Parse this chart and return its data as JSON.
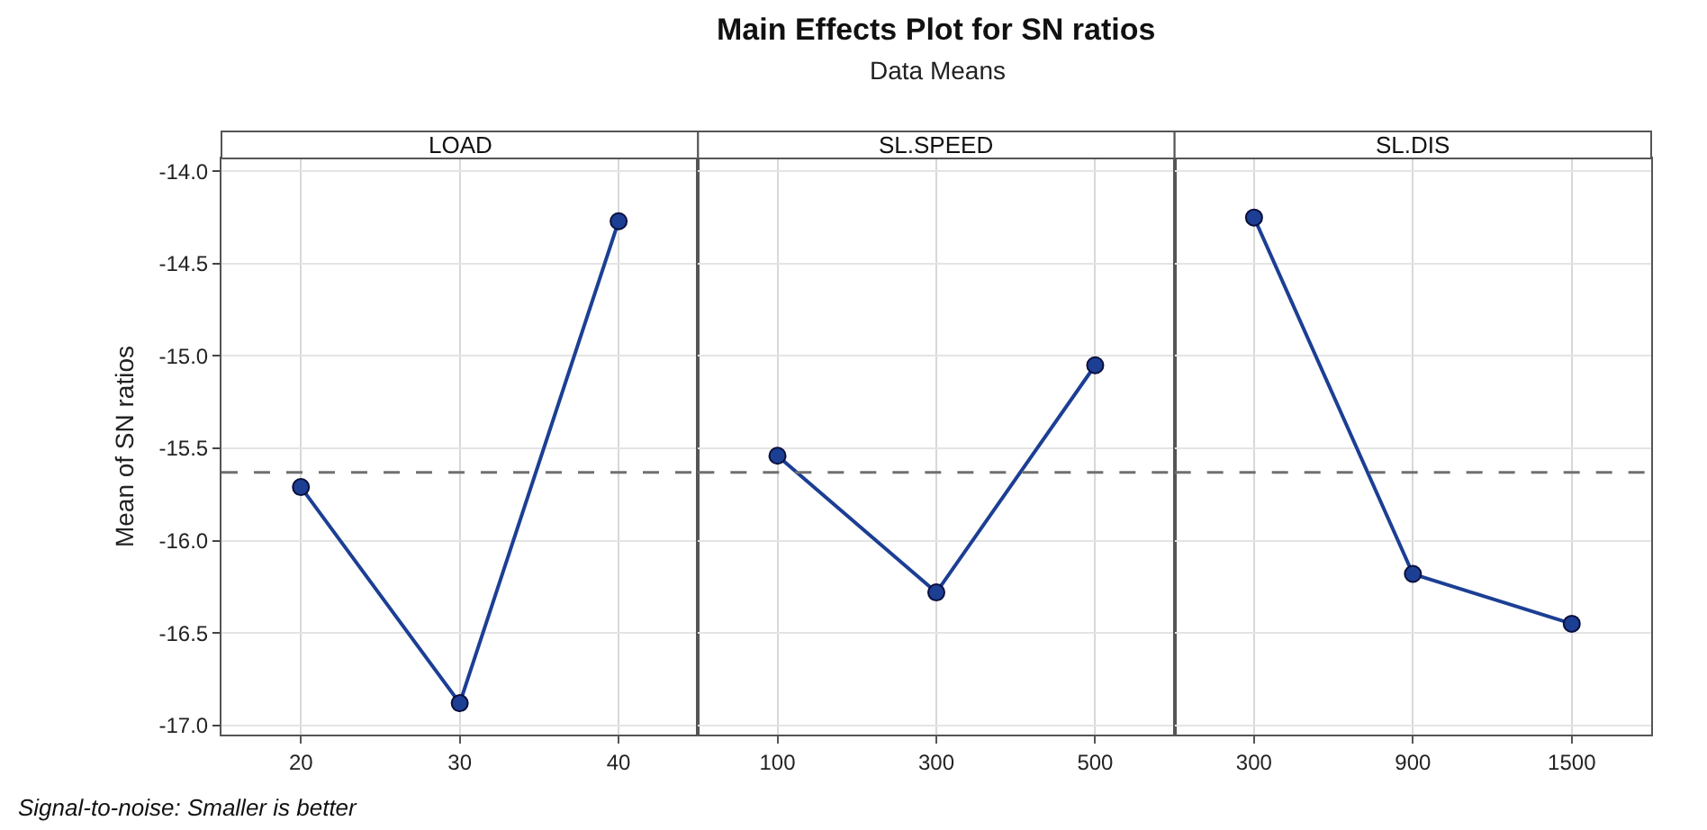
{
  "chart_data": [
    {
      "type": "line",
      "xlabel": "LOAD",
      "ylabel": "Mean of SN ratios",
      "categories": [
        "20",
        "30",
        "40"
      ],
      "series": [
        {
          "color": "#1c3f94",
          "values": [
            -15.71,
            -16.88,
            -14.27
          ]
        }
      ],
      "ylim": [
        -17.05,
        -13.93
      ],
      "yticks": [
        {
          "value": -17,
          "label": "-17.0"
        },
        {
          "value": -16.5,
          "label": "-16.5"
        },
        {
          "value": -16,
          "label": "-16.0"
        },
        {
          "value": -15.5,
          "label": "-15.5"
        },
        {
          "value": -15,
          "label": "-15.0"
        },
        {
          "value": -14.5,
          "label": "-14.5"
        },
        {
          "value": -14,
          "label": "-14.0"
        }
      ],
      "ref_lines": [
        {
          "axis": "y",
          "value": -15.63,
          "color": "#707070",
          "line_style": "dashed"
        }
      ],
      "grid": true,
      "marker": "circle",
      "line_style": "solid",
      "annotations": [
        "Signal-to-noise: Smaller is better"
      ]
    },
    {
      "type": "line",
      "title": "Main Effects Plot for SN ratios",
      "subtitle": "Data Means",
      "xlabel": "SL.SPEED",
      "categories": [
        "100",
        "300",
        "500"
      ],
      "series": [
        {
          "color": "#1c3f94",
          "values": [
            -15.54,
            -16.28,
            -15.05
          ]
        }
      ],
      "ylim": [
        -17.05,
        -13.93
      ],
      "yticks": [
        -17,
        -16.5,
        -16,
        -15.5,
        -15,
        -14.5,
        -14
      ],
      "tick_labels": "x",
      "ref_lines": [
        {
          "axis": "y",
          "value": -15.63,
          "color": "#707070",
          "line_style": "dashed"
        }
      ],
      "grid": true,
      "marker": "circle",
      "line_style": "solid"
    },
    {
      "type": "line",
      "xlabel": "SL.DIS",
      "categories": [
        "300",
        "900",
        "1500"
      ],
      "series": [
        {
          "color": "#1c3f94",
          "values": [
            -14.25,
            -16.18,
            -16.45
          ]
        }
      ],
      "ylim": [
        -17.05,
        -13.93
      ],
      "yticks": [
        -17,
        -16.5,
        -16,
        -15.5,
        -15,
        -14.5,
        -14
      ],
      "tick_labels": "x",
      "ref_lines": [
        {
          "axis": "y",
          "value": -15.63,
          "color": "#707070",
          "line_style": "dashed"
        }
      ],
      "grid": true,
      "marker": "circle",
      "line_style": "solid"
    }
  ]
}
